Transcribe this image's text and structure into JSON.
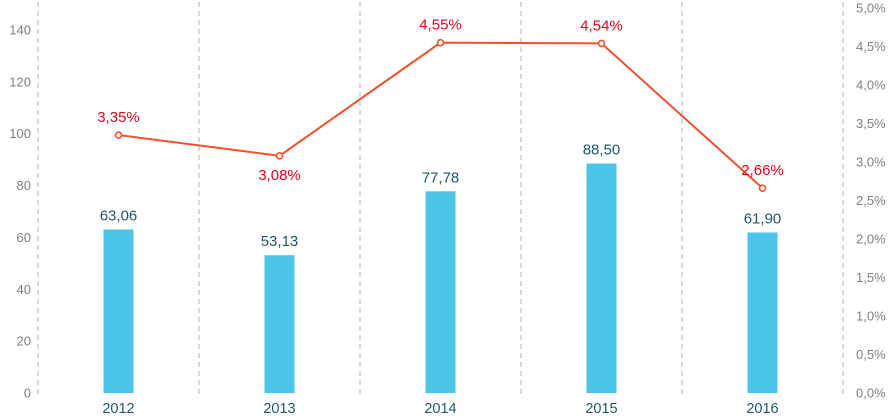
{
  "chart_data": {
    "type": "combo",
    "title": "",
    "legend": "none",
    "categories": [
      "2012",
      "2013",
      "2014",
      "2015",
      "2016"
    ],
    "series": [
      {
        "name": "bar-series",
        "type": "bar",
        "axis": "left",
        "values": [
          63.06,
          53.13,
          77.78,
          88.5,
          61.9
        ],
        "labels": [
          "63,06",
          "53,13",
          "77,78",
          "88,50",
          "61,90"
        ],
        "color": "#4cc3e8",
        "label_color": "#215968"
      },
      {
        "name": "line-series",
        "type": "line",
        "axis": "right",
        "values": [
          3.35,
          3.08,
          4.55,
          4.54,
          2.66
        ],
        "labels": [
          "3,35%",
          "3,08%",
          "4,55%",
          "4,54%",
          "2,66%"
        ],
        "label_positions": [
          "above",
          "below",
          "above",
          "above",
          "above"
        ],
        "color": "#f1502f",
        "label_color": "#e0041c"
      }
    ],
    "left_axis": {
      "min": 0,
      "max": 140,
      "step": 20,
      "tick_labels": [
        "0",
        "20",
        "40",
        "60",
        "80",
        "100",
        "120",
        "140"
      ],
      "tick_color": "#808080"
    },
    "right_axis": {
      "min": 0,
      "max": 5,
      "step": 0.5,
      "tick_labels": [
        "0,0%",
        "0,5%",
        "1,0%",
        "1,5%",
        "2,0%",
        "2,5%",
        "3,0%",
        "3,5%",
        "4,0%",
        "4,5%",
        "5,0%"
      ],
      "tick_color": "#808080"
    },
    "x_axis": {
      "label_color": "#215968"
    },
    "grid": {
      "vertical_dashed": true,
      "color": "#b0b0b0"
    }
  }
}
